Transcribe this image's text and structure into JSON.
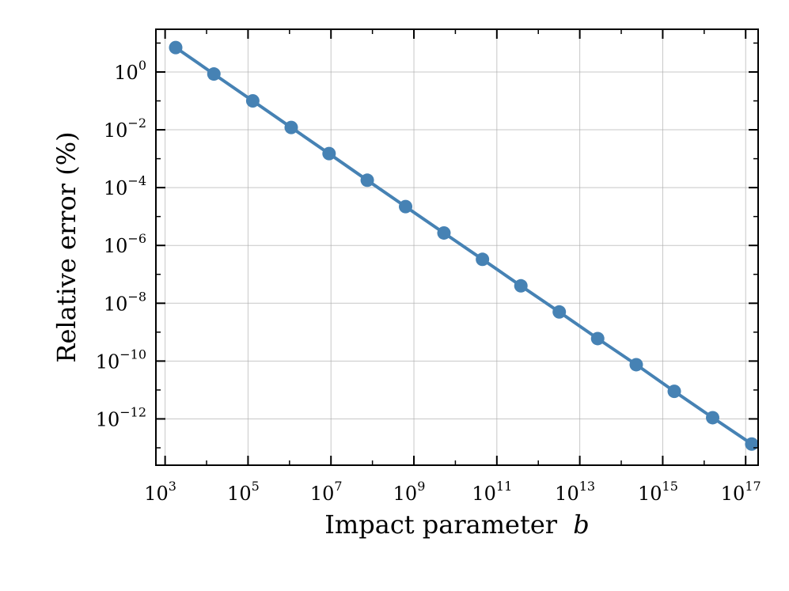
{
  "chart_data": {
    "type": "line",
    "title": "",
    "xlabel": "Impact parameter",
    "xlabel_symbol": "b",
    "ylabel": "Relative error (%)",
    "xscale": "log",
    "yscale": "log",
    "xlim": [
      600,
      200000000000000000
    ],
    "ylim": [
      2.5e-14,
      30
    ],
    "grid": true,
    "legend": "none",
    "colors": {
      "series": "#4682b4",
      "grid": "#b0b0b0",
      "axes": "#000000"
    },
    "x_ticks": [
      {
        "base": "10",
        "exp": "3",
        "value": 1000.0
      },
      {
        "base": "10",
        "exp": "5",
        "value": 100000.0
      },
      {
        "base": "10",
        "exp": "7",
        "value": 10000000.0
      },
      {
        "base": "10",
        "exp": "9",
        "value": 1000000000.0
      },
      {
        "base": "10",
        "exp": "11",
        "value": 100000000000.0
      },
      {
        "base": "10",
        "exp": "13",
        "value": 10000000000000.0
      },
      {
        "base": "10",
        "exp": "15",
        "value": 1000000000000000.0
      },
      {
        "base": "10",
        "exp": "17",
        "value": 1e+17
      }
    ],
    "y_ticks": [
      {
        "base": "10",
        "exp": "0",
        "value": 1
      },
      {
        "base": "10",
        "exp": "−2",
        "value": 0.01
      },
      {
        "base": "10",
        "exp": "−4",
        "value": 0.0001
      },
      {
        "base": "10",
        "exp": "−6",
        "value": 1e-06
      },
      {
        "base": "10",
        "exp": "−8",
        "value": 1e-08
      },
      {
        "base": "10",
        "exp": "−10",
        "value": 1e-10
      },
      {
        "base": "10",
        "exp": "−12",
        "value": 1e-12
      }
    ],
    "series": [
      {
        "x": [
          1800,
          15000,
          130000,
          1100000,
          9000000,
          75000000,
          630000000,
          5300000000,
          45000000000,
          380000000000,
          3200000000000,
          27000000000000,
          230000000000000,
          1900000000000000,
          16000000000000000,
          140000000000000000
        ],
        "y": [
          7,
          0.85,
          0.1,
          0.012,
          0.0015,
          0.00018,
          2.2e-05,
          2.7e-06,
          3.3e-07,
          4e-08,
          5e-09,
          6e-10,
          7.5e-11,
          9e-12,
          1.1e-12,
          1.35e-13
        ]
      }
    ]
  }
}
